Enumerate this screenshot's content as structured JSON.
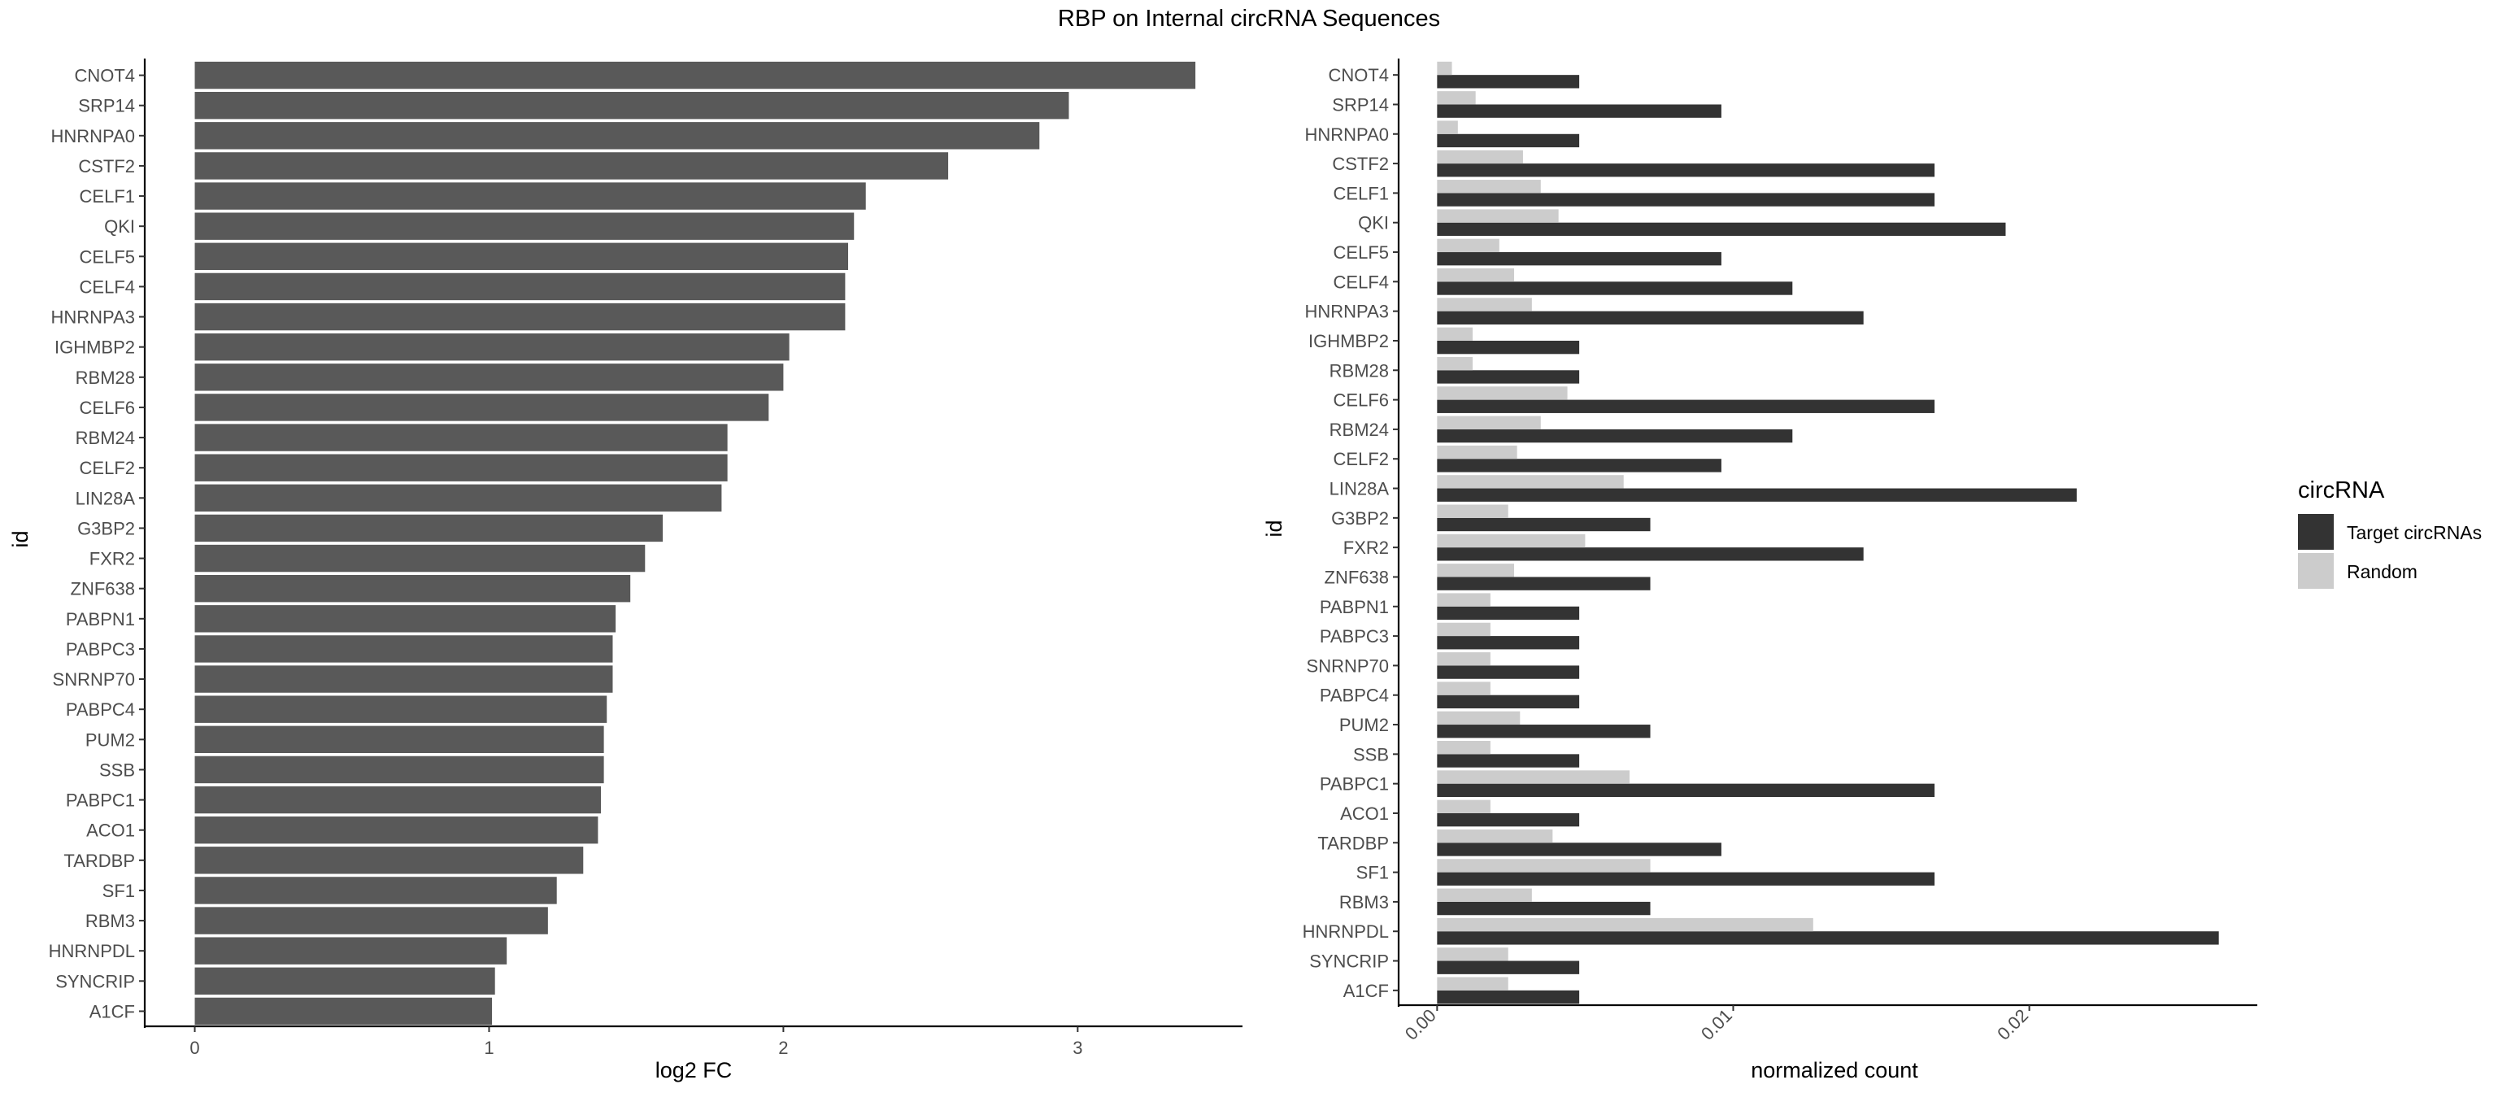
{
  "title": "RBP on Internal circRNA Sequences",
  "colors": {
    "bar": "#595959",
    "target": "#333333",
    "random": "#cccccc",
    "axis": "#000000",
    "tick_text": "#4d4d4d"
  },
  "chart_data": [
    {
      "type": "bar",
      "orientation": "horizontal",
      "categories": [
        "CNOT4",
        "SRP14",
        "HNRNPA0",
        "CSTF2",
        "CELF1",
        "QKI",
        "CELF5",
        "CELF4",
        "HNRNPA3",
        "IGHMBP2",
        "RBM28",
        "CELF6",
        "RBM24",
        "CELF2",
        "LIN28A",
        "G3BP2",
        "FXR2",
        "ZNF638",
        "PABPN1",
        "PABPC3",
        "SNRNP70",
        "PABPC4",
        "PUM2",
        "SSB",
        "PABPC1",
        "ACO1",
        "TARDBP",
        "SF1",
        "RBM3",
        "HNRNPDL",
        "SYNCRIP",
        "A1CF"
      ],
      "values": [
        3.4,
        2.97,
        2.87,
        2.56,
        2.28,
        2.24,
        2.22,
        2.21,
        2.21,
        2.02,
        2.0,
        1.95,
        1.81,
        1.81,
        1.79,
        1.59,
        1.53,
        1.48,
        1.43,
        1.42,
        1.42,
        1.4,
        1.39,
        1.39,
        1.38,
        1.37,
        1.32,
        1.23,
        1.2,
        1.06,
        1.02,
        1.01
      ],
      "xlabel": "log2 FC",
      "ylabel": "id",
      "xlim": [
        -0.17,
        3.56
      ],
      "xticks": [
        0,
        1,
        2,
        3
      ],
      "xtick_labels": [
        "0",
        "1",
        "2",
        "3"
      ],
      "grid": false
    },
    {
      "type": "bar",
      "orientation": "horizontal",
      "grouped": true,
      "categories": [
        "CNOT4",
        "SRP14",
        "HNRNPA0",
        "CSTF2",
        "CELF1",
        "QKI",
        "CELF5",
        "CELF4",
        "HNRNPA3",
        "IGHMBP2",
        "RBM28",
        "CELF6",
        "RBM24",
        "CELF2",
        "LIN28A",
        "G3BP2",
        "FXR2",
        "ZNF638",
        "PABPN1",
        "PABPC3",
        "SNRNP70",
        "PABPC4",
        "PUM2",
        "SSB",
        "PABPC1",
        "ACO1",
        "TARDBP",
        "SF1",
        "RBM3",
        "HNRNPDL",
        "SYNCRIP",
        "A1CF"
      ],
      "series": [
        {
          "name": "Target circRNAs",
          "values": [
            0.0048,
            0.0096,
            0.0048,
            0.0168,
            0.0168,
            0.0192,
            0.0096,
            0.012,
            0.0144,
            0.0048,
            0.0048,
            0.0168,
            0.012,
            0.0096,
            0.0216,
            0.0072,
            0.0144,
            0.0072,
            0.0048,
            0.0048,
            0.0048,
            0.0048,
            0.0072,
            0.0048,
            0.0168,
            0.0048,
            0.0096,
            0.0168,
            0.0072,
            0.0264,
            0.0048,
            0.0048
          ]
        },
        {
          "name": "Random",
          "values": [
            0.0005,
            0.0013,
            0.0007,
            0.0029,
            0.0035,
            0.0041,
            0.0021,
            0.0026,
            0.0032,
            0.0012,
            0.0012,
            0.0044,
            0.0035,
            0.0027,
            0.0063,
            0.0024,
            0.005,
            0.0026,
            0.0018,
            0.0018,
            0.0018,
            0.0018,
            0.0028,
            0.0018,
            0.0065,
            0.0018,
            0.0039,
            0.0072,
            0.0032,
            0.0127,
            0.0024,
            0.0024
          ]
        }
      ],
      "xlabel": "normalized count",
      "ylabel": "id",
      "xlim": [
        -0.0013,
        0.0277
      ],
      "xticks": [
        0,
        0.01,
        0.02
      ],
      "xtick_labels": [
        "0.00",
        "0.01",
        "0.02"
      ],
      "xtick_rotation": 45,
      "legend": {
        "title": "circRNA",
        "placement": "right"
      },
      "grid": false
    }
  ]
}
